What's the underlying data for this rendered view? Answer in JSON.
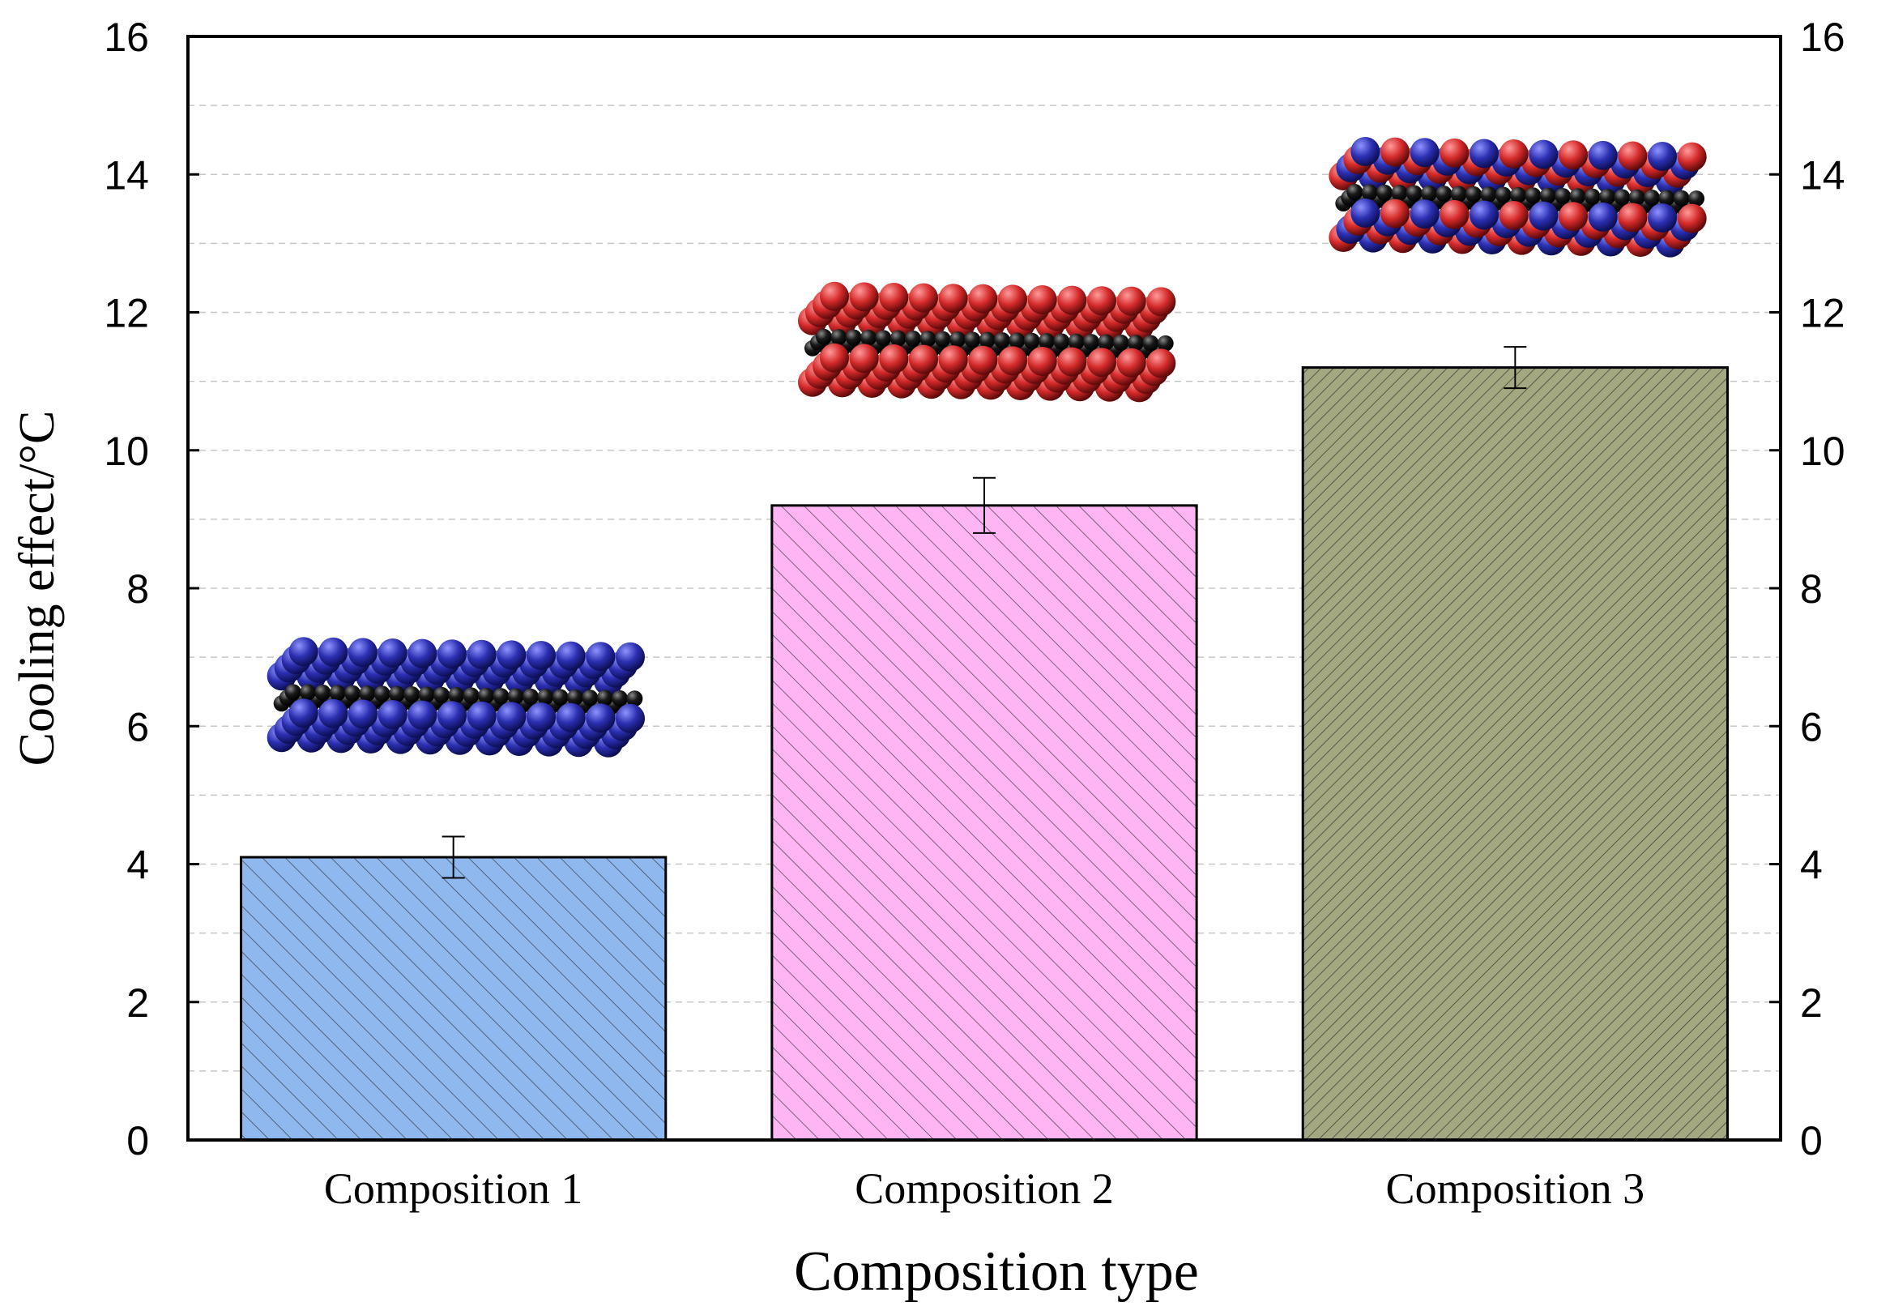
{
  "chart_data": {
    "type": "bar",
    "title": "",
    "xlabel": "Composition type",
    "ylabel": "Cooling effect/°C",
    "categories": [
      "Composition 1",
      "Composition 2",
      "Composition 3"
    ],
    "values": [
      4.1,
      9.2,
      11.2
    ],
    "errors": [
      0.3,
      0.4,
      0.3
    ],
    "ylim": [
      0,
      16
    ],
    "yticks": [
      0,
      2,
      4,
      6,
      8,
      10,
      12,
      14,
      16
    ],
    "y2ticks": [
      0,
      2,
      4,
      6,
      8,
      10,
      12,
      14,
      16
    ],
    "grid": "horizontal dashed, every 1 unit",
    "bar_colors": [
      "#8fb8ef",
      "#ffb4f4",
      "#a4a880"
    ],
    "structure_colors": {
      "Composition 1": [
        "#2b2fb0",
        "#2b2fb0"
      ],
      "Composition 2": [
        "#d42a2a",
        "#d42a2a"
      ],
      "Composition 3": [
        "#d42a2a",
        "#2b2fb0"
      ]
    },
    "core_color": "#1a1a1a"
  }
}
